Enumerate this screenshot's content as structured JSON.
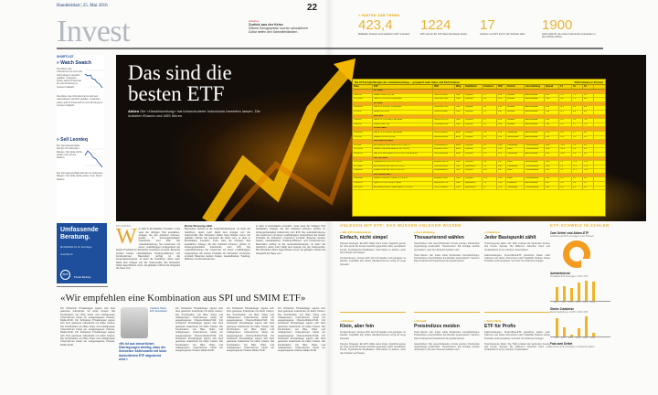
{
  "masthead": {
    "paper": "Handelsblatt",
    "date": "25. Mai 2016",
    "page_number": "22",
    "section": "Invest"
  },
  "teaser": {
    "kicker": "Anleihen",
    "title": "Zurück aus der Krise",
    "text": "Höhere Energiepreise und ein schwächerer Dollar helfen den Schwellenländern.",
    "ref": "Seite 23"
  },
  "facts": {
    "header": "» FAKTEN ZUM THEMA",
    "items": [
      {
        "value": "423,4",
        "text": "Milliarden Franken sind weltweit in ETF investiert."
      },
      {
        "value": "1224",
        "text": "ETF sind an der SIX Swiss Exchange kotiert."
      },
      {
        "value": "17",
        "text": "Anbieter von ETF sind in der Schweiz aktiv."
      },
      {
        "value": "1900",
        "text": "Jahre Zukunft; die ersten Indexfonds entstanden in den 1970er-Jahren."
      }
    ]
  },
  "sidebar": {
    "kicker": "SHORTLIST",
    "items": [
      {
        "title": "» Watch Swatch",
        "chart_label": "Swatch Group",
        "text": "Die Aktien des Uhrenkonzerns sind seit Jahresbeginn deutlich gefallen. Analysten sehen jedoch Potenzial für eine Erholung im zweiten Halbjahr."
      },
      {
        "title": "» Sell Leonteq",
        "chart_label": "Leonteq",
        "text": "Der Derivatespezialist kämpft mit sinkenden Margen. Die Aktie dürfte weiter unter Druck bleiben."
      }
    ]
  },
  "hero": {
    "title_line1": "Das sind die",
    "title_line2": "besten ETF",
    "lead_kicker": "Aktien",
    "lead_text": "Die «Handelszeitung» hat börsenkotierte Indexfonds bewerten lassen. Die Anbieter iShares und UBS führen."
  },
  "etf_table": {
    "title": "Die ETF-Empfehlungen der «Handelszeitung» – gruppiert nach Index und Performance",
    "source": "Performance in Prozent",
    "headers": [
      "Valor",
      "ETF",
      "ISIN",
      "Whg.",
      "Replikation",
      "Fondsvol.",
      "TER",
      "Domizil",
      "Ausschüttung",
      "Spread",
      "1J",
      "3J",
      "5J"
    ],
    "groups": [
      {
        "name": "SPI Index",
        "rows": [
          [
            "1999794",
            "iShares Core SPI (CH)",
            "CH0237935652",
            "CHF",
            "Physisch",
            "1.2",
            "0.10",
            "Schweiz",
            "Ausschüttend",
            "0.07",
            "-2.8",
            "7.5",
            "9.1"
          ],
          [
            "11176253",
            "UBS ETF (CH) SPI (CHF) A-dis",
            "CH0131872431",
            "CHF",
            "Physisch",
            "0.4",
            "0.20",
            "Schweiz",
            "Ausschüttend",
            "0.09",
            "-3.0",
            "7.2",
            "8.9"
          ]
        ]
      },
      {
        "name": "SLI Index",
        "rows": [
          [
            "14010326",
            "UBS ETF (CH) SLI (CHF) A-dis",
            "CH0032912732",
            "CHF",
            "Physisch",
            "0.9",
            "0.20",
            "Schweiz",
            "Ausschüttend",
            "0.08",
            "-4.1",
            "6.3",
            "8.4"
          ],
          [
            "2701218",
            "iShares SLI (CH)",
            "CH0031768937",
            "CHF",
            "Physisch",
            "1.5",
            "0.51",
            "Schweiz",
            "Ausschüttend",
            "0.06",
            "-4.3",
            "6.0",
            "8.1"
          ]
        ]
      },
      {
        "name": "SMI Index",
        "rows": [
          [
            "1358245",
            "UBS ETF (CH) SMI (CHF) A-dis",
            "CH0017142719",
            "CHF",
            "Physisch",
            "2.1",
            "0.20",
            "Schweiz",
            "Ausschüttend",
            "0.05",
            "-5.2",
            "5.4",
            "7.8"
          ],
          [
            "1383133",
            "iShares SMI (CH)",
            "CH0008899764",
            "CHF",
            "Physisch",
            "3.4",
            "0.35",
            "Schweiz",
            "Ausschüttend",
            "0.04",
            "-5.4",
            "5.2",
            "7.6"
          ]
        ]
      },
      {
        "name": "STOXX Index",
        "rows": [
          [
            "18101826",
            "UBS ETF (LU) MSCI EMU A-dis",
            "LU0147308422",
            "EUR",
            "Physisch",
            "0.8",
            "0.28",
            "Luxemburg",
            "Ausschüttend",
            "0.10",
            "-9.8",
            "4.1",
            "6.5"
          ],
          [
            "1379700",
            "iShares STOXX 50 (DE)",
            "DE0005933956",
            "EUR",
            "Physisch",
            "5.6",
            "0.16",
            "Deutschland",
            "Ausschüttend",
            "0.05",
            "-11.2",
            "3.5",
            "5.9"
          ]
        ]
      },
      {
        "name": "Euro Stoxx 50 Index",
        "rows": [
          [
            "1011748",
            "db x-trackers Euro Stoxx 50 ETF (DR) 1C",
            "LU0380865021",
            "EUR",
            "Physisch",
            "3.2",
            "0.09",
            "Luxemburg",
            "Thesaurierend",
            "0.05",
            "-10.5",
            "3.9",
            "6.2"
          ],
          [
            "21012155",
            "iShares Core Euro Stoxx 50 UCITS ETF",
            "IE00B53L3W79",
            "EUR",
            "Physisch",
            "4.1",
            "0.10",
            "Irland",
            "Thesaurierend",
            "0.04",
            "-10.3",
            "4.0",
            "6.3"
          ],
          [
            "18935710",
            "UBS ETF Euro Stoxx 50 UCITS ETF (EUR) A-dis",
            "LU0136234068",
            "EUR",
            "Physisch",
            "1.0",
            "0.15",
            "Luxemburg",
            "Ausschüttend",
            "0.06",
            "-10.6",
            "3.8",
            "6.1"
          ]
        ]
      },
      {
        "name": "S&P 500 Index",
        "rows": [
          [
            "10737041",
            "Vanguard S&P 500 UCITS ETF",
            "IE00B3XXRP09",
            "USD",
            "Physisch",
            "9.8",
            "0.07",
            "Irland",
            "Ausschüttend",
            "0.03",
            "1.2",
            "11.4",
            "12.8"
          ],
          [
            "11175944",
            "db x-trackers S&P 500 UCITS ETF",
            "LU0490618542",
            "USD",
            "Synthetisch",
            "2.6",
            "0.09",
            "Luxemburg",
            "Thesaurierend",
            "0.04",
            "1.0",
            "11.2",
            "12.6"
          ],
          [
            "13466535",
            "iShares Core S&P 500 UCITS ETF",
            "IE00B5BMR087",
            "USD",
            "Physisch",
            "18.2",
            "0.07",
            "Irland",
            "Thesaurierend",
            "0.03",
            "1.3",
            "11.5",
            "12.9"
          ]
        ]
      },
      {
        "name": "MSCI World Index",
        "rows": [
          [
            "10608388",
            "iShares Core MSCI World UCITS ETF",
            "IE00B4L5Y983",
            "USD",
            "Physisch",
            "12.4",
            "0.20",
            "Irland",
            "Thesaurierend",
            "0.05",
            "-3.1",
            "8.2",
            "9.4"
          ],
          [
            "12341176",
            "Lyxor UCITS ETF MSCI World",
            "FR0010315770",
            "USD",
            "Synthetisch",
            "1.9",
            "0.30",
            "Frankreich",
            "Ausschüttend",
            "0.07",
            "-3.4",
            "8.0",
            "9.1"
          ],
          [
            "11176253",
            "db x-trackers MSCI World Index UCITS ETF",
            "LU0274208692",
            "USD",
            "Synthetisch",
            "3.7",
            "0.19",
            "Luxemburg",
            "Thesaurierend",
            "0.06",
            "-3.3",
            "8.1",
            "9.2"
          ]
        ]
      }
    ]
  },
  "advert": {
    "headline": "Umfassende Beratung.",
    "subline": "Mit Weitblick für Ihr Vermögen.",
    "url": "www.bkb.ch",
    "logo": "BKB",
    "logo_text": "Private Banking"
  },
  "lead_article": {
    "kicker": "ETF-RATING",
    "dropcap": "W",
    "text": "er aktiv in Einzelaktien investiert, muss stets die richtigen Titel auswählen. Anleger, die den Aufwand scheuen, greifen zu börsengehandelten Indexfonds, kurz ETF. Die «Handelszeitung» hat zusammen mit einem unabhängigen Analysehaus die besten Produkte für Schweizer Investoren ermittelt. Bewertet wurden Kosten, Handelbarkeit, Tracking-Differenz und Fondsvolumen.",
    "subhead": "Breite Streuung zählt",
    "text2": "Besonders wichtig ist die Gesamtkostenquote. Je tiefer die Gebühren, desto mehr bleibt dem Anleger von der Indexrendite. Bei Schweizer Aktien liegt iShares vorne, bei globalen Indizes hat Vanguard die Nase vorn."
  },
  "interview": {
    "title": "«Wir empfehlen eine Kombination aus SPI und SMIM ETF»",
    "caption": "Claudine Sutter, ETF-Spezialistin",
    "pull_quote": "«Es ist aus steuerlichen Überlegungen wichtig, dass der Schweizer Aktienmarkt mit lokal domizilierten ETF abgedeckt wird.»",
    "text": "Für Schweizer Privatanleger eignen sich breit gestreute Indexfonds mit tiefen Kosten. Die Kombination von Blue Chips und mittelgrossen Unternehmen bietet ein ausgewogenes Chance-Risiko-Profil."
  },
  "guide": {
    "strip": "ANLEGEN MIT ETF: DAS MÜSSEN ANLEGER WISSEN",
    "boxes": [
      {
        "kicker": "» Wie ETF funktionieren",
        "title": "Einfach, nicht simpel",
        "text": "Passive Strategie: Ein ETF bildet einen Index möglichst genau ab. Das senkt die Kosten deutlich gegenüber aktiv verwalteten Fonds. Synthetische Replikation: Statt Aktien zu kaufen, setzt der Anbieter auf Swaps."
      },
      {
        "kicker": "» Ausschüttung",
        "title": "Thesaurierend wählen",
        "text": "Ausschütten: Bei ausschüttenden Fonds werden Dividenden regelmässig ausbezahlt. Thesaurieren: Die Erträge werden reinvestiert, was den Zinseszinseffekt nutzt."
      },
      {
        "kicker": "» Gebühren",
        "title": "Jeder Basispunkt zählt",
        "text": "Total Expense Ratio: Die TER umfasst die laufenden Kosten des Fonds. Spread: Die Differenz zwischen Kauf- und Verkaufskurs ist ein weiterer Kostenfaktor."
      },
      {
        "kicker": "» Volumen",
        "title": "Klein, aber fein",
        "text": "Fondsvolumen: Grosse ETF sind oft liquider und günstiger im Handel. Liquidität: Ein hohes Handelsvolumen sorgt für enge Spreads."
      },
      {
        "kicker": "» Domizil",
        "title": "Preisindizes meiden",
        "text": "Total Return: Ein Index sollte Dividenden berücksichtigen. Preisindizes unterschätzen die Rendite systematisch. Steuern: Das Fondsdomizil beeinflusst die Quellensteuer."
      },
      {
        "kicker": "» Smart Beta",
        "title": "ETF für Profis",
        "text": "Faktorstrategien: Smart-Beta-ETF gewichten Aktien nach Faktoren wie Value, Momentum oder Volatilität. Risiken: Diese Produkte sind komplexer und eher für erfahrene Anleger."
      }
    ]
  },
  "infographic": {
    "header": "ETF-SCHWEIZ IN ZAHLEN",
    "chart_data": [
      {
        "type": "pie",
        "title": "Zwei Drittel sind Aktien-ETF",
        "subtitle": "Aufteilung der ETF-Vermögen in der Schweiz",
        "labels": [
          "Aktien",
          "Anleihen",
          "Rohstoffe",
          "Übrige"
        ],
        "values": [
          66,
          20,
          10,
          4
        ]
      },
      {
        "type": "bar",
        "title": "Aufwärtstrend",
        "subtitle": "Verwaltete ETF-Vermögen in Mrd. CHF",
        "categories": [
          "2010",
          "2011",
          "2012",
          "2013",
          "2014",
          "2015"
        ],
        "values": [
          55,
          60,
          52,
          72,
          80,
          78
        ]
      },
      {
        "type": "bar",
        "title": "Starke Zuwächse",
        "subtitle": "Nettomittelzuflüsse in ETF in Mrd. CHF",
        "categories": [
          "2010",
          "2011",
          "2012",
          "2013",
          "2014",
          "2015"
        ],
        "values": [
          8.2,
          4.1,
          1.0,
          3.6,
          9.0,
          1.5
        ]
      }
    ],
    "footer_title": "Fast zwei Drittel",
    "footer_text": "Anteil der ETF-Vermögen in Schweizer Aktien"
  }
}
